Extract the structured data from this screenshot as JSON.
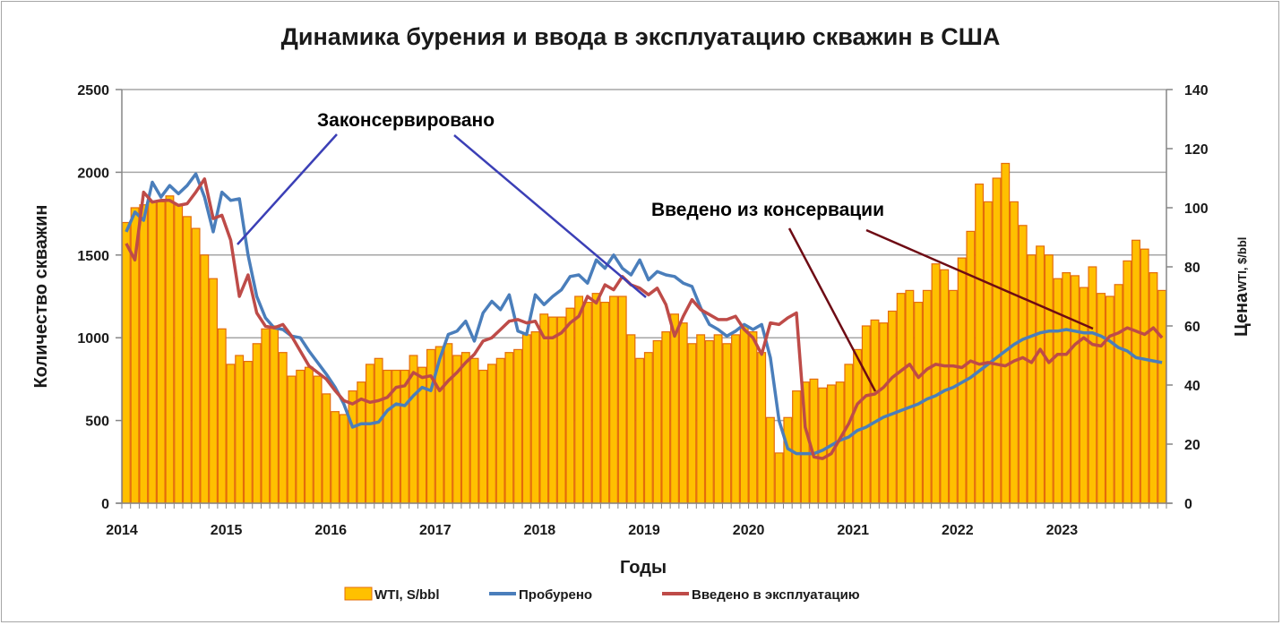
{
  "chart_data": {
    "type": "bar+line",
    "title": "Динамика бурения и ввода в эксплуатацию скважин в США",
    "xlabel": "Годы",
    "ylabel_left": "Количество скважин",
    "ylabel_right_main": "Цена",
    "ylabel_right_small": "WTI, $/bbl",
    "ylim_left": [
      0,
      2500
    ],
    "ylim_right": [
      0,
      140
    ],
    "yticks_left": [
      "0",
      "500",
      "1000",
      "1500",
      "2000",
      "2500"
    ],
    "yticks_right": [
      "0",
      "20",
      "40",
      "60",
      "80",
      "100",
      "120",
      "140"
    ],
    "x_tick_labels": [
      "2014",
      "2015",
      "2016",
      "2017",
      "2018",
      "2019",
      "2020",
      "2021",
      "2022",
      "2023"
    ],
    "grid": "horizontal-major",
    "legend_position": "bottom",
    "legend": [
      "WTI, S/bbl",
      "Пробурено",
      "Введено в эксплуатацию"
    ],
    "colors": {
      "bar_fill": "#ffc000",
      "bar_edge": "#e46c0a",
      "drilled": "#4a7ebb",
      "completed": "#be4b48",
      "annot_blue": "#3b3fb6",
      "annot_dark": "#6e0b14",
      "grid": "#a6a6a6"
    },
    "x_unit": "month index from Jan 2014",
    "series": [
      {
        "name": "WTI, S/bbl",
        "type": "bar",
        "axis": "right",
        "values": [
          95,
          100,
          101,
          102,
          102,
          104,
          101,
          97,
          93,
          84,
          76,
          59,
          47,
          50,
          48,
          54,
          59,
          60,
          51,
          43,
          45,
          46,
          43,
          37,
          31,
          30,
          38,
          41,
          47,
          49,
          45,
          45,
          45,
          50,
          46,
          52,
          53,
          54,
          50,
          51,
          49,
          45,
          47,
          49,
          51,
          52,
          57,
          58,
          64,
          63,
          63,
          66,
          70,
          68,
          71,
          68,
          70,
          70,
          57,
          49,
          51,
          55,
          58,
          64,
          61,
          54,
          57,
          55,
          57,
          54,
          57,
          60,
          58,
          51,
          29,
          17,
          29,
          38,
          41,
          42,
          39,
          40,
          41,
          47,
          52,
          60,
          62,
          61,
          65,
          71,
          72,
          68,
          72,
          81,
          79,
          72,
          83,
          92,
          108,
          102,
          110,
          115,
          102,
          94,
          84,
          87,
          84,
          76,
          78,
          77,
          73,
          80,
          71,
          70,
          74,
          82,
          89,
          86,
          78,
          72
        ]
      },
      {
        "name": "Пробурено",
        "type": "line",
        "axis": "left",
        "values": [
          1640,
          1760,
          1710,
          1940,
          1850,
          1920,
          1870,
          1920,
          1990,
          1850,
          1640,
          1880,
          1830,
          1840,
          1500,
          1250,
          1120,
          1060,
          1050,
          1010,
          1000,
          920,
          850,
          780,
          700,
          600,
          460,
          480,
          480,
          490,
          560,
          600,
          590,
          650,
          700,
          680,
          870,
          1020,
          1040,
          1100,
          980,
          1150,
          1220,
          1170,
          1260,
          1040,
          1020,
          1260,
          1200,
          1250,
          1290,
          1370,
          1380,
          1330,
          1470,
          1420,
          1500,
          1420,
          1380,
          1470,
          1350,
          1400,
          1380,
          1370,
          1330,
          1310,
          1180,
          1080,
          1050,
          1010,
          1040,
          1080,
          1050,
          1080,
          880,
          500,
          330,
          300,
          300,
          300,
          320,
          350,
          380,
          400,
          440,
          460,
          490,
          520,
          540,
          560,
          580,
          600,
          630,
          650,
          680,
          700,
          730,
          760,
          800,
          840,
          880,
          920,
          960,
          990,
          1010,
          1030,
          1040,
          1040,
          1050,
          1040,
          1030,
          1030,
          1010,
          980,
          940,
          920,
          880,
          870,
          860,
          850
        ]
      },
      {
        "name": "Введено в эксплуатацию",
        "type": "line",
        "axis": "left",
        "values": [
          1570,
          1470,
          1880,
          1820,
          1830,
          1830,
          1800,
          1810,
          1880,
          1960,
          1720,
          1740,
          1590,
          1250,
          1380,
          1150,
          1070,
          1060,
          1080,
          1010,
          920,
          830,
          790,
          750,
          680,
          620,
          600,
          630,
          610,
          620,
          640,
          700,
          710,
          790,
          760,
          770,
          680,
          740,
          790,
          850,
          900,
          980,
          1000,
          1050,
          1100,
          1110,
          1090,
          1100,
          1000,
          1000,
          1030,
          1090,
          1130,
          1250,
          1210,
          1320,
          1290,
          1370,
          1320,
          1300,
          1260,
          1300,
          1200,
          1010,
          1130,
          1230,
          1170,
          1140,
          1110,
          1110,
          1130,
          1050,
          1000,
          900,
          1090,
          1080,
          1120,
          1150,
          460,
          280,
          270,
          300,
          390,
          480,
          600,
          650,
          660,
          700,
          760,
          800,
          840,
          760,
          810,
          840,
          830,
          830,
          820,
          860,
          840,
          850,
          840,
          830,
          860,
          880,
          850,
          930,
          850,
          900,
          900,
          960,
          1000,
          960,
          950,
          1010,
          1030,
          1060,
          1040,
          1020,
          1060,
          1000
        ]
      }
    ],
    "annotations": [
      {
        "text": "Законсервировано"
      },
      {
        "text": "Введено из консервации"
      }
    ]
  }
}
